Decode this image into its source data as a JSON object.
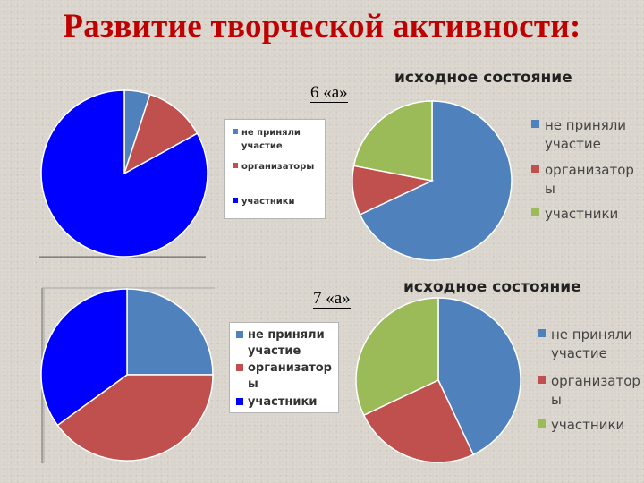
{
  "slide": {
    "title": "Развитие творческой активности:"
  },
  "legend_labels": {
    "small": [
      "не приняли\nучастие",
      "организаторы",
      "участники"
    ],
    "large": [
      "не приняли\nучастие",
      "организатор\nы",
      "участники"
    ]
  },
  "chart_data": [
    {
      "type": "pie",
      "label": "6 «а»",
      "title": "",
      "categories": [
        "не приняли участие",
        "организаторы",
        "участники"
      ],
      "values": [
        5,
        12,
        83
      ],
      "colors": [
        "#4f81bd",
        "#c0504d",
        "#0000ff"
      ],
      "legend": "right"
    },
    {
      "type": "pie",
      "label": "",
      "title": "исходное состояние",
      "categories": [
        "не приняли участие",
        "организаторы",
        "участники"
      ],
      "values": [
        68,
        10,
        22
      ],
      "colors": [
        "#4f81bd",
        "#c0504d",
        "#9bbb59"
      ],
      "legend": "right"
    },
    {
      "type": "pie",
      "label": "7 «а»",
      "title": "",
      "categories": [
        "не приняли участие",
        "организаторы",
        "участники"
      ],
      "values": [
        25,
        40,
        35
      ],
      "colors": [
        "#4f81bd",
        "#c0504d",
        "#0000ff"
      ],
      "legend": "right"
    },
    {
      "type": "pie",
      "label": "",
      "title": "исходное состояние",
      "categories": [
        "не приняли участие",
        "организаторы",
        "участники"
      ],
      "values": [
        43,
        25,
        32
      ],
      "colors": [
        "#4f81bd",
        "#c0504d",
        "#9bbb59"
      ],
      "legend": "right"
    }
  ]
}
